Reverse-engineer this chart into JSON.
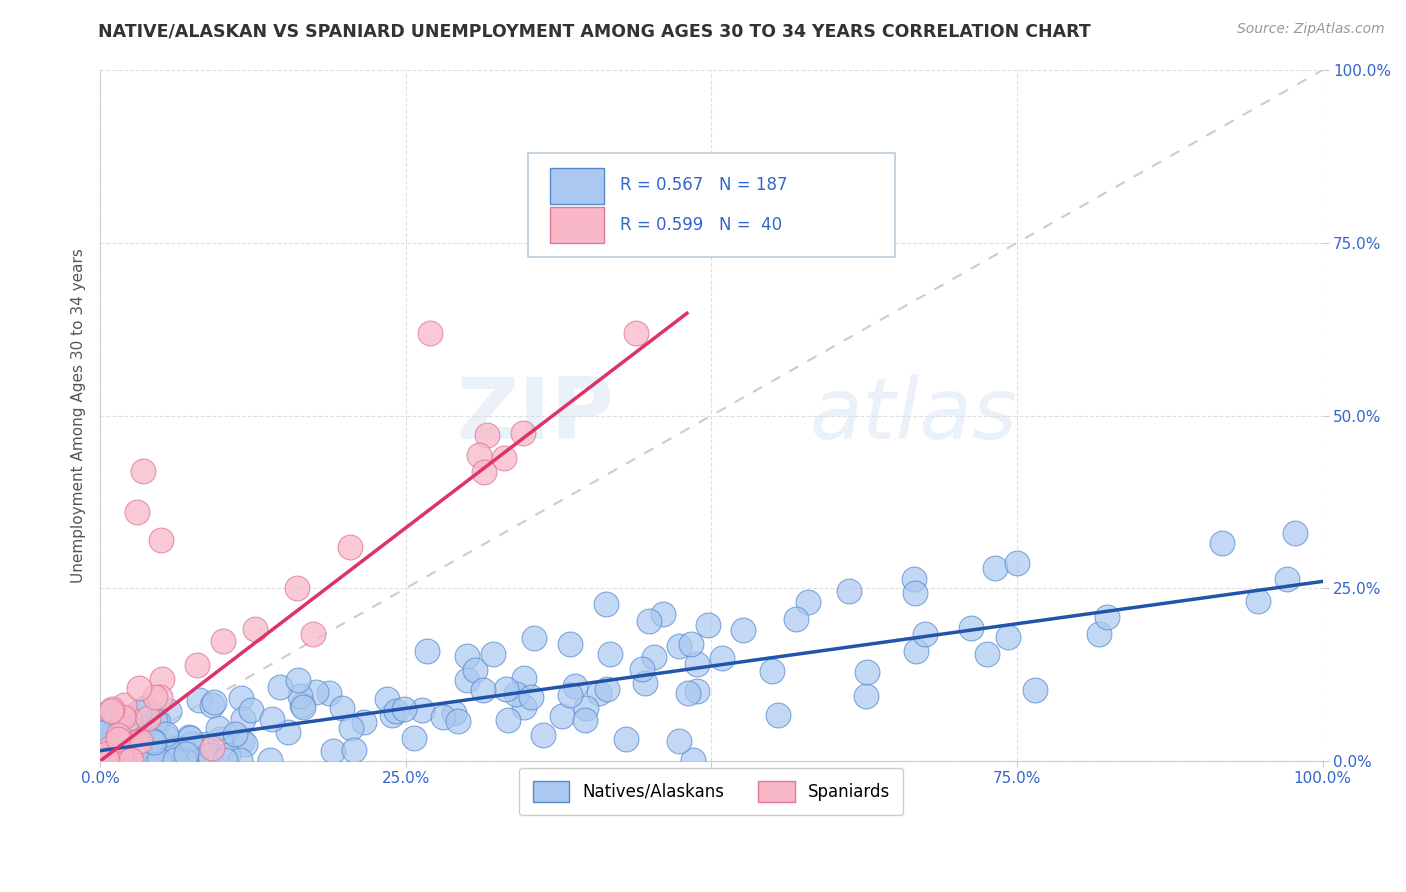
{
  "title": "NATIVE/ALASKAN VS SPANIARD UNEMPLOYMENT AMONG AGES 30 TO 34 YEARS CORRELATION CHART",
  "source": "Source: ZipAtlas.com",
  "ylabel": "Unemployment Among Ages 30 to 34 years",
  "xlim": [
    0,
    1
  ],
  "ylim": [
    0,
    1
  ],
  "xticks": [
    0.0,
    0.25,
    0.5,
    0.75,
    1.0
  ],
  "yticks": [
    0.0,
    0.25,
    0.5,
    0.75,
    1.0
  ],
  "xticklabels": [
    "0.0%",
    "25.0%",
    "50.0%",
    "75.0%",
    "100.0%"
  ],
  "yticklabels": [
    "0.0%",
    "25.0%",
    "50.0%",
    "75.0%",
    "100.0%"
  ],
  "blue_R": 0.567,
  "blue_N": 187,
  "pink_R": 0.599,
  "pink_N": 40,
  "blue_color": "#aac8f0",
  "blue_edge_color": "#5588cc",
  "blue_line_color": "#2255aa",
  "pink_color": "#f8b8c8",
  "pink_edge_color": "#dd7799",
  "pink_line_color": "#dd3366",
  "ref_line_color": "#cccccc",
  "legend_R_color": "#3366cc",
  "background_color": "#ffffff",
  "watermark_text": "ZIPatlas",
  "blue_slope": 0.245,
  "blue_intercept": 0.015,
  "pink_slope": 1.35,
  "pink_intercept": 0.0,
  "pink_line_xmax": 0.48
}
